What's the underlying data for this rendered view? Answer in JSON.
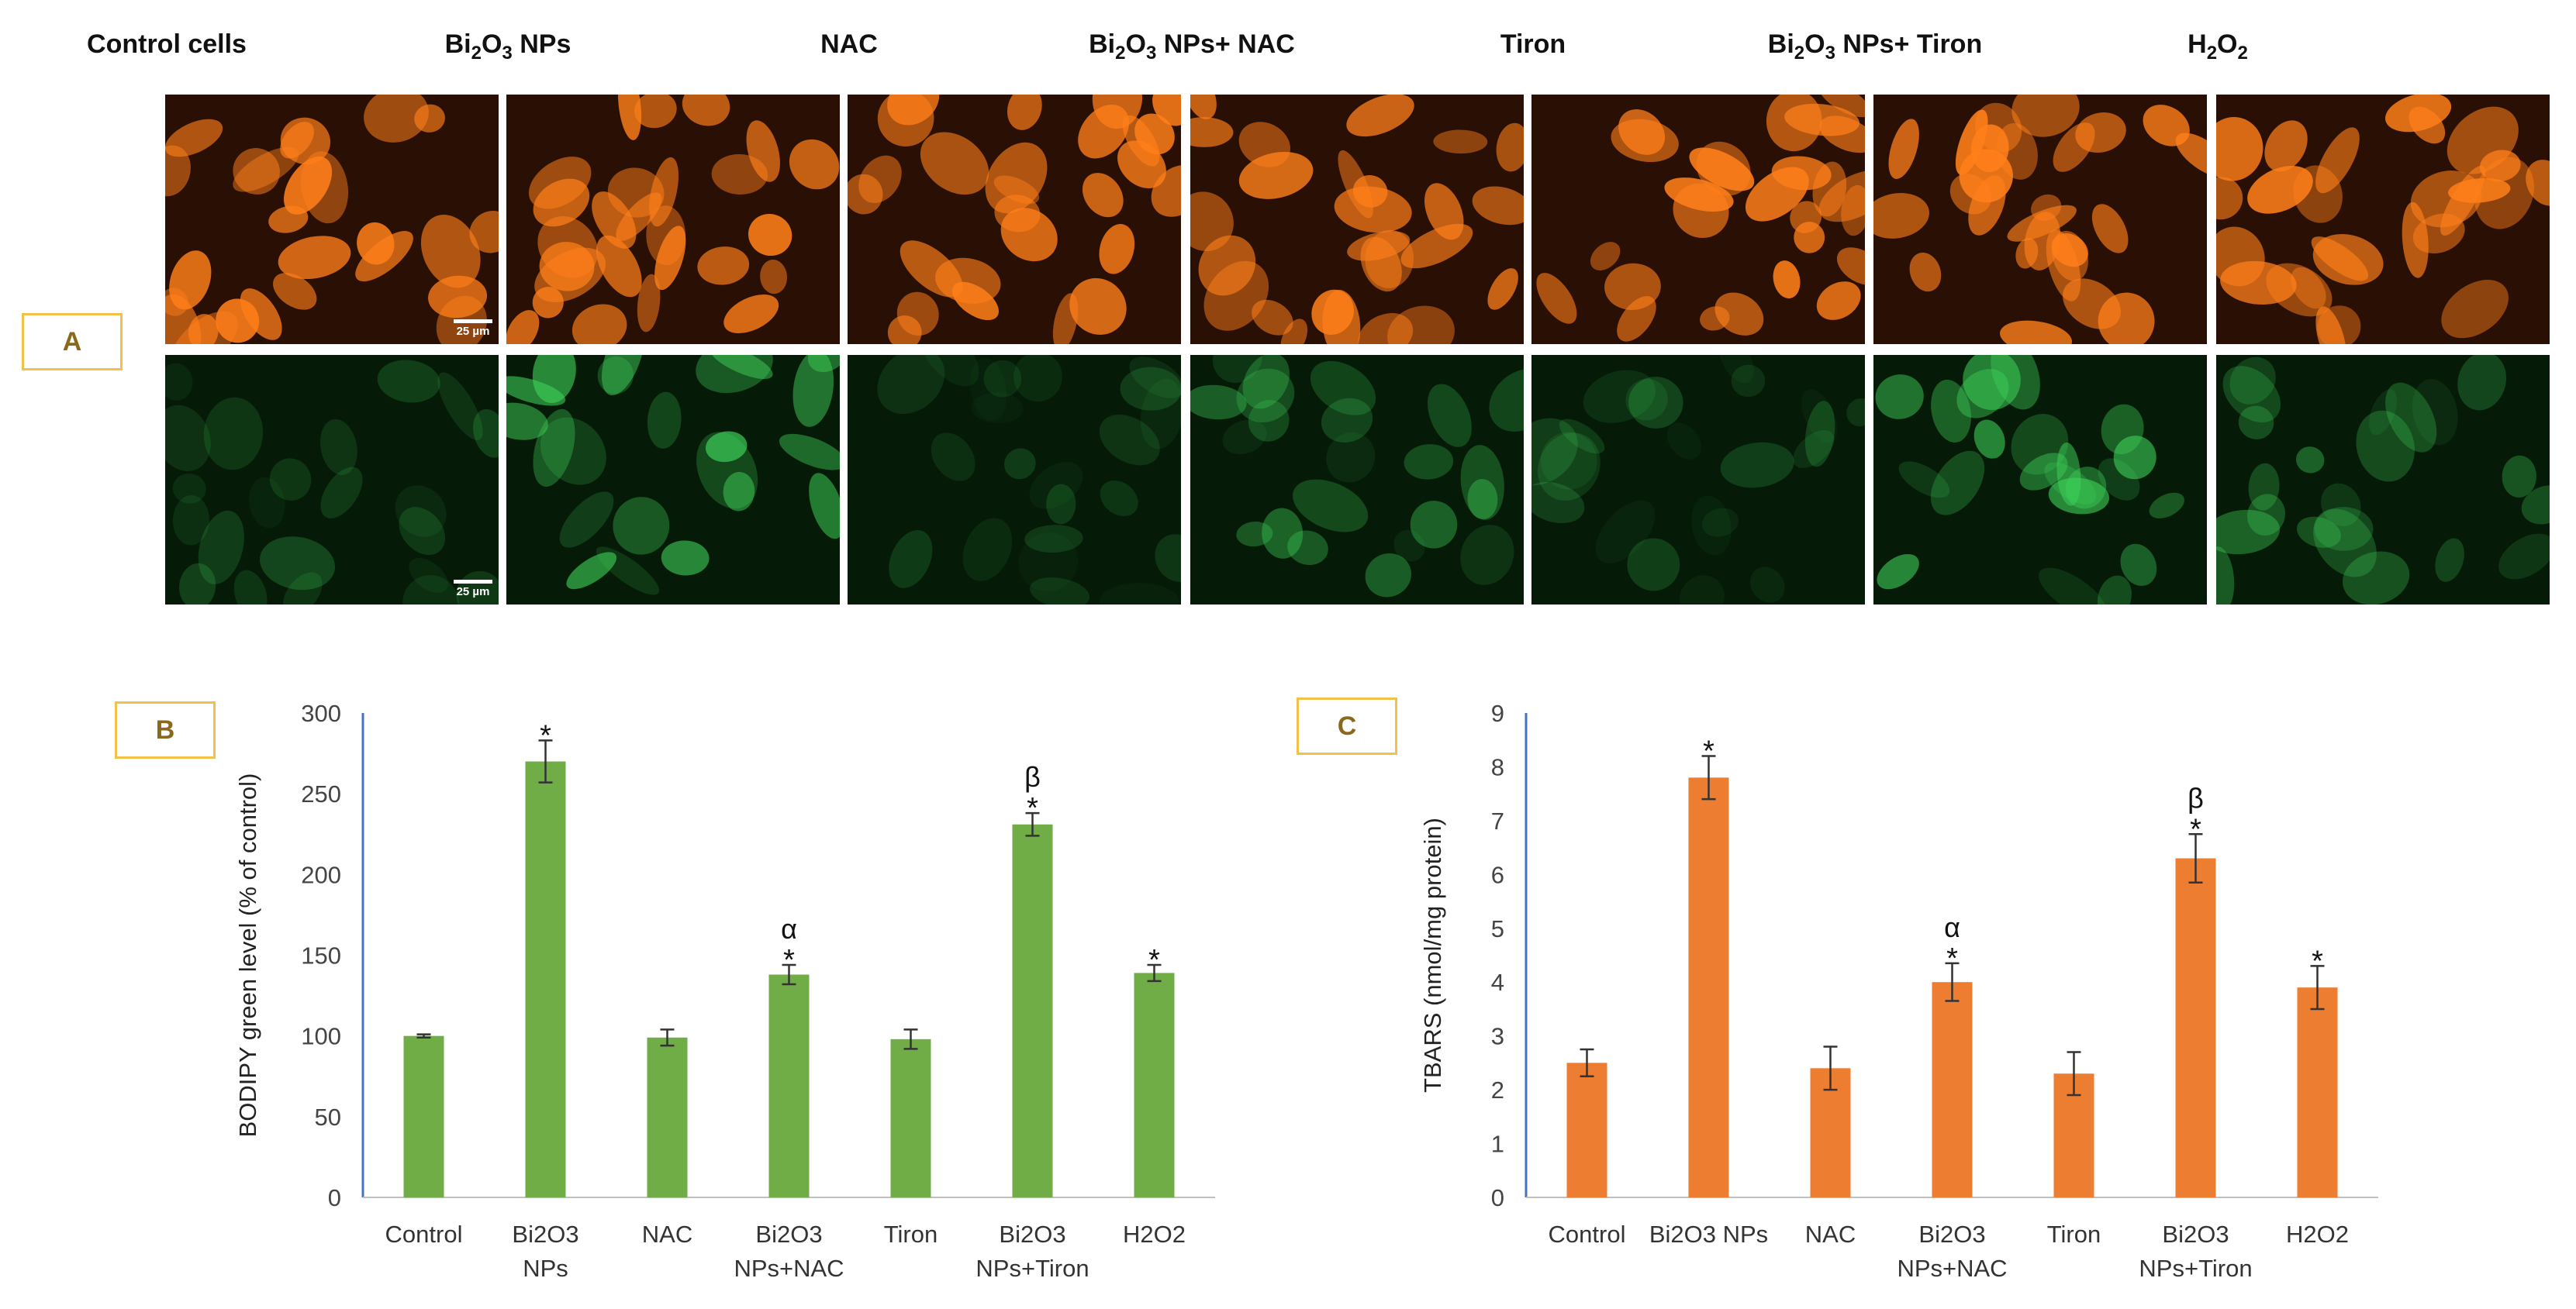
{
  "panel_labels": {
    "a": "A",
    "b": "B",
    "c": "C"
  },
  "columns": [
    {
      "label": "Control cells"
    },
    {
      "label_main": "Bi",
      "sub1": "2",
      "mid": "O",
      "sub2": "3",
      "label_rest": " NPs"
    },
    {
      "label": "NAC"
    },
    {
      "label_main": "Bi",
      "sub1": "2",
      "mid": "O",
      "sub2": "3",
      "label_rest": " NPs+ NAC"
    },
    {
      "label": "Tiron"
    },
    {
      "label_main": "Bi",
      "sub1": "2",
      "mid": "O",
      "sub2": "3",
      "label_rest": " NPs+ Tiron"
    },
    {
      "label_main": "H",
      "sub1": "2",
      "mid": "O",
      "sub2": "2",
      "label_rest": ""
    }
  ],
  "scale_bar_label": "25 µm",
  "colors": {
    "orange_stain": "#ff7f1a",
    "green_stain": "#3fd45a",
    "bar_green": "#70ad47",
    "bar_orange": "#ed7d31",
    "axis_blue": "#4472c4",
    "panel_border": "#f2c14a"
  },
  "chart_data": [
    {
      "type": "bar",
      "panel": "B",
      "categories": [
        [
          "Control"
        ],
        [
          "Bi2O3",
          "NPs"
        ],
        [
          "NAC"
        ],
        [
          "Bi2O3",
          "NPs+NAC"
        ],
        [
          "Tiron"
        ],
        [
          "Bi2O3",
          "NPs+Tiron"
        ],
        [
          "H2O2"
        ]
      ],
      "values": [
        100,
        270,
        99,
        138,
        98,
        231,
        139
      ],
      "errors": [
        1,
        13,
        5,
        6,
        6,
        7,
        5
      ],
      "annotations": [
        [],
        [
          "*"
        ],
        [],
        [
          "*",
          "α"
        ],
        [],
        [
          "*",
          "β"
        ],
        [
          "*"
        ]
      ],
      "ylabel": "BODIPY green level (% of control)",
      "xlabel": "",
      "ylim": [
        0,
        300
      ],
      "yticks": [
        0,
        50,
        100,
        150,
        200,
        250,
        300
      ],
      "grid": false,
      "color": "#70ad47"
    },
    {
      "type": "bar",
      "panel": "C",
      "categories": [
        [
          "Control"
        ],
        [
          "Bi2O3 NPs"
        ],
        [
          "NAC"
        ],
        [
          "Bi2O3",
          "NPs+NAC"
        ],
        [
          "Tiron"
        ],
        [
          "Bi2O3",
          "NPs+Tiron"
        ],
        [
          "H2O2"
        ]
      ],
      "values": [
        2.5,
        7.8,
        2.4,
        4.0,
        2.3,
        6.3,
        3.9
      ],
      "errors": [
        0.25,
        0.4,
        0.4,
        0.35,
        0.4,
        0.45,
        0.4
      ],
      "annotations": [
        [],
        [
          "*"
        ],
        [],
        [
          "*",
          "α"
        ],
        [],
        [
          "*",
          "β"
        ],
        [
          "*"
        ]
      ],
      "ylabel": "TBARS (nmol/mg protein)",
      "xlabel": "",
      "ylim": [
        0,
        9
      ],
      "yticks": [
        0,
        1,
        2,
        3,
        4,
        5,
        6,
        7,
        8,
        9
      ],
      "grid": false,
      "color": "#ed7d31"
    }
  ]
}
